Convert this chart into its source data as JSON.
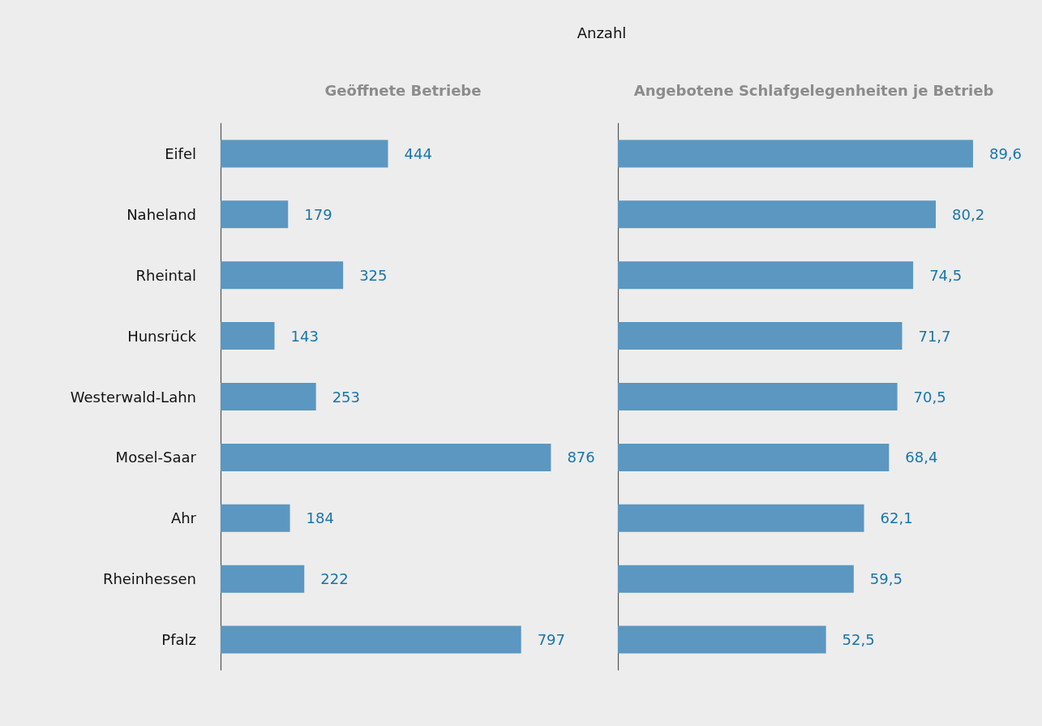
{
  "chart_data": [
    {
      "type": "bar",
      "orientation": "horizontal",
      "title": "Geöffnete Betriebe",
      "annotations": [
        "Anzahl"
      ],
      "categories": [
        "Eifel",
        "Naheland",
        "Rheintal",
        "Hunsrück",
        "Westerwald-Lahn",
        "Mosel-Saar",
        "Ahr",
        "Rheinhessen",
        "Pfalz"
      ],
      "values": [
        444,
        179,
        325,
        143,
        253,
        876,
        184,
        222,
        797
      ],
      "color": "#5b97c0",
      "data_labels": true,
      "grid": false,
      "tick_labels": "y"
    },
    {
      "type": "bar",
      "orientation": "horizontal",
      "title": "Angebotene Schlafgelegenheiten je Betrieb",
      "categories": [
        null,
        null,
        null,
        null,
        null,
        null,
        null,
        null,
        null
      ],
      "values": [
        89.6,
        80.2,
        74.5,
        71.7,
        70.5,
        68.4,
        62.1,
        59.5,
        52.5
      ],
      "value_labels": [
        "89,6",
        "80,2",
        "74,5",
        "71,7",
        "70,5",
        "68,4",
        "62,1",
        "59,5",
        "52,5"
      ],
      "color": "#5b97c0",
      "grid": false,
      "tick_labels": false
    }
  ]
}
